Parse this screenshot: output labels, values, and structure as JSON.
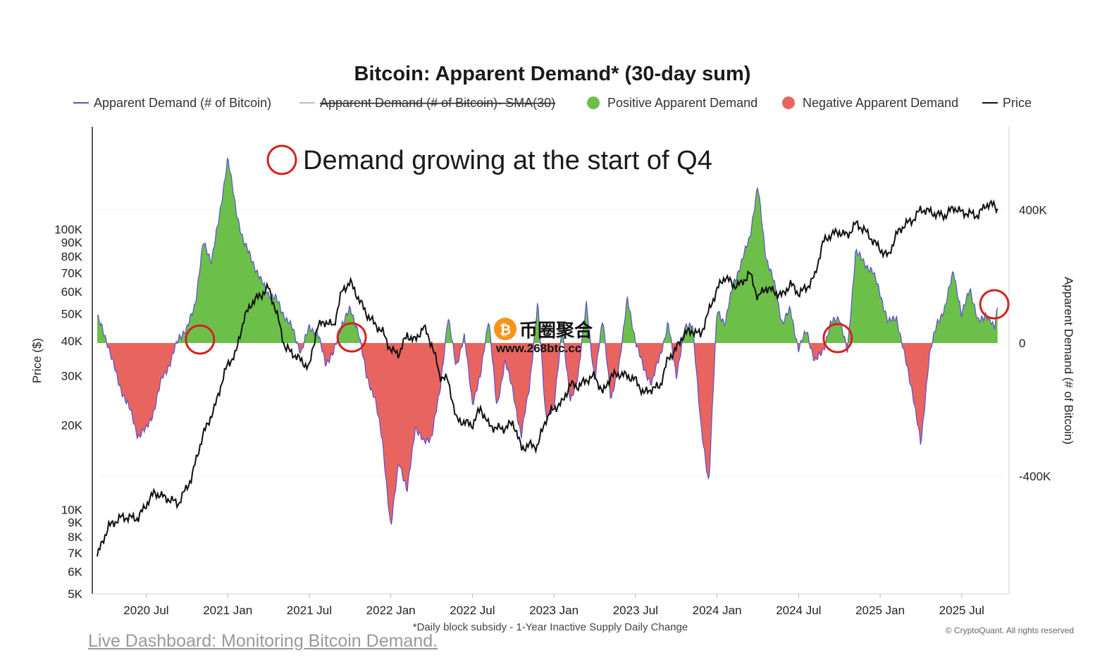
{
  "chart_data": {
    "type": "area",
    "title": "Bitcoin: Apparent Demand* (30-day sum)",
    "legend": [
      {
        "name": "Apparent Demand (# of Bitcoin)",
        "color": "#5a4fcf",
        "kind": "line",
        "hidden": false
      },
      {
        "name": "Apparent Demand (# of Bitcoin)- SMA(30)",
        "color": "#bbbbbb",
        "kind": "line",
        "hidden": true
      },
      {
        "name": "Positive Apparent Demand",
        "color": "#6cc04a",
        "kind": "dot",
        "hidden": false
      },
      {
        "name": "Negative Apparent Demand",
        "color": "#e8655f",
        "kind": "dot",
        "hidden": false
      },
      {
        "name": "Price",
        "color": "#111111",
        "kind": "line",
        "hidden": false
      }
    ],
    "x_ticks": [
      "2020 Jul",
      "2021 Jan",
      "2021 Jul",
      "2022 Jan",
      "2022 Jul",
      "2023 Jan",
      "2023 Jul",
      "2024 Jan",
      "2024 Jul",
      "2025 Jan",
      "2025 Jul"
    ],
    "x_range": [
      "2020-03-15",
      "2025-10-05"
    ],
    "left_axis": {
      "label": "Price ($)",
      "scale": "log",
      "range": [
        5000,
        200000
      ],
      "ticks": [
        {
          "v": 5000,
          "t": "5K"
        },
        {
          "v": 6000,
          "t": "6K"
        },
        {
          "v": 7000,
          "t": "7K"
        },
        {
          "v": 8000,
          "t": "8K"
        },
        {
          "v": 9000,
          "t": "9K"
        },
        {
          "v": 10000,
          "t": "10K"
        },
        {
          "v": 20000,
          "t": "20K"
        },
        {
          "v": 30000,
          "t": "30K"
        },
        {
          "v": 40000,
          "t": "40K"
        },
        {
          "v": 50000,
          "t": "50K"
        },
        {
          "v": 60000,
          "t": "60K"
        },
        {
          "v": 70000,
          "t": "70K"
        },
        {
          "v": 80000,
          "t": "80K"
        },
        {
          "v": 90000,
          "t": "90K"
        },
        {
          "v": 100000,
          "t": "100K"
        }
      ]
    },
    "right_axis": {
      "label": "Apparent Demand (# of Bitcoin)",
      "range": [
        -760000,
        650000
      ],
      "ticks": [
        {
          "v": 400000,
          "t": "400K"
        },
        {
          "v": 0,
          "t": "0"
        },
        {
          "v": -400000,
          "t": "-400K"
        }
      ]
    },
    "demand_series": {
      "name": "Apparent Demand (# of Bitcoin)",
      "x": [
        2020.2,
        2020.27,
        2020.33,
        2020.4,
        2020.45,
        2020.5,
        2020.55,
        2020.6,
        2020.65,
        2020.7,
        2020.75,
        2020.8,
        2020.85,
        2020.9,
        2020.95,
        2021.0,
        2021.05,
        2021.1,
        2021.15,
        2021.2,
        2021.25,
        2021.3,
        2021.35,
        2021.4,
        2021.45,
        2021.5,
        2021.55,
        2021.6,
        2021.65,
        2021.7,
        2021.75,
        2021.8,
        2021.85,
        2021.9,
        2021.95,
        2022.0,
        2022.05,
        2022.1,
        2022.15,
        2022.2,
        2022.25,
        2022.3,
        2022.35,
        2022.4,
        2022.45,
        2022.5,
        2022.55,
        2022.6,
        2022.65,
        2022.7,
        2022.75,
        2022.8,
        2022.85,
        2022.9,
        2022.95,
        2023.0,
        2023.05,
        2023.1,
        2023.15,
        2023.2,
        2023.25,
        2023.3,
        2023.35,
        2023.4,
        2023.45,
        2023.5,
        2023.55,
        2023.6,
        2023.65,
        2023.7,
        2023.75,
        2023.8,
        2023.85,
        2023.9,
        2023.95,
        2024.0,
        2024.05,
        2024.1,
        2024.15,
        2024.2,
        2024.25,
        2024.3,
        2024.35,
        2024.4,
        2024.45,
        2024.5,
        2024.55,
        2024.6,
        2024.65,
        2024.7,
        2024.75,
        2024.8,
        2024.85,
        2024.9,
        2024.95,
        2025.0,
        2025.05,
        2025.1,
        2025.15,
        2025.2,
        2025.25,
        2025.3,
        2025.35,
        2025.4,
        2025.45,
        2025.5,
        2025.55,
        2025.6,
        2025.65,
        2025.7,
        2025.72
      ],
      "y": [
        80000,
        -10000,
        -120000,
        -200000,
        -280000,
        -260000,
        -200000,
        -100000,
        -60000,
        20000,
        40000,
        120000,
        300000,
        250000,
        380000,
        560000,
        400000,
        300000,
        250000,
        190000,
        150000,
        130000,
        80000,
        40000,
        -30000,
        50000,
        30000,
        -60000,
        -30000,
        60000,
        100000,
        40000,
        -100000,
        -160000,
        -300000,
        -560000,
        -350000,
        -450000,
        -250000,
        -300000,
        -280000,
        -150000,
        80000,
        -70000,
        20000,
        -180000,
        -100000,
        80000,
        -200000,
        -50000,
        -150000,
        -280000,
        -130000,
        120000,
        -220000,
        -200000,
        50000,
        -180000,
        -90000,
        120000,
        -120000,
        80000,
        -180000,
        -60000,
        130000,
        10000,
        -80000,
        -120000,
        -40000,
        60000,
        -100000,
        40000,
        60000,
        -250000,
        -420000,
        100000,
        60000,
        180000,
        240000,
        320000,
        470000,
        260000,
        180000,
        60000,
        100000,
        -20000,
        40000,
        -60000,
        -20000,
        60000,
        80000,
        -30000,
        280000,
        240000,
        220000,
        150000,
        60000,
        80000,
        -40000,
        -150000,
        -310000,
        -40000,
        60000,
        110000,
        220000,
        80000,
        170000,
        60000,
        90000,
        40000,
        110000
      ]
    },
    "price_series": {
      "name": "Price",
      "x": [
        2020.2,
        2020.27,
        2020.35,
        2020.45,
        2020.55,
        2020.62,
        2020.7,
        2020.78,
        2020.85,
        2020.92,
        2021.0,
        2021.05,
        2021.1,
        2021.15,
        2021.2,
        2021.25,
        2021.3,
        2021.35,
        2021.4,
        2021.45,
        2021.5,
        2021.55,
        2021.6,
        2021.65,
        2021.7,
        2021.75,
        2021.8,
        2021.85,
        2021.9,
        2021.95,
        2022.0,
        2022.05,
        2022.1,
        2022.15,
        2022.2,
        2022.25,
        2022.3,
        2022.35,
        2022.4,
        2022.45,
        2022.5,
        2022.55,
        2022.6,
        2022.65,
        2022.7,
        2022.75,
        2022.8,
        2022.85,
        2022.9,
        2022.95,
        2023.0,
        2023.05,
        2023.1,
        2023.15,
        2023.2,
        2023.25,
        2023.3,
        2023.35,
        2023.4,
        2023.45,
        2023.5,
        2023.55,
        2023.6,
        2023.65,
        2023.7,
        2023.75,
        2023.8,
        2023.85,
        2023.9,
        2023.95,
        2024.0,
        2024.05,
        2024.1,
        2024.15,
        2024.2,
        2024.25,
        2024.3,
        2024.35,
        2024.4,
        2024.45,
        2024.5,
        2024.55,
        2024.6,
        2024.65,
        2024.7,
        2024.75,
        2024.8,
        2024.85,
        2024.9,
        2024.95,
        2025.0,
        2025.05,
        2025.1,
        2025.15,
        2025.2,
        2025.25,
        2025.3,
        2025.35,
        2025.4,
        2025.45,
        2025.5,
        2025.55,
        2025.6,
        2025.65,
        2025.7,
        2025.72
      ],
      "y": [
        6800,
        8700,
        9400,
        9300,
        11500,
        11000,
        10500,
        13000,
        18500,
        23000,
        33000,
        36000,
        48000,
        55000,
        58000,
        62000,
        50000,
        38000,
        36000,
        34000,
        32000,
        45000,
        47000,
        45000,
        60000,
        65000,
        57000,
        50000,
        46000,
        43000,
        37000,
        36000,
        42000,
        40000,
        45000,
        39000,
        30000,
        29000,
        21000,
        20500,
        20000,
        23000,
        20000,
        19500,
        19500,
        20500,
        16500,
        17000,
        16800,
        21000,
        23000,
        24000,
        28000,
        27500,
        29000,
        30000,
        26000,
        30000,
        30500,
        30000,
        29000,
        26000,
        27000,
        27500,
        34500,
        37500,
        42500,
        43500,
        42000,
        51000,
        61000,
        68000,
        63000,
        64000,
        70000,
        57000,
        62000,
        60000,
        58000,
        64000,
        59000,
        62000,
        68000,
        90000,
        96000,
        98000,
        95000,
        105000,
        100000,
        92000,
        85000,
        80000,
        96000,
        104000,
        108000,
        118000,
        116000,
        113000,
        112000,
        120000,
        115000,
        114000,
        112000,
        123000,
        122000,
        118000
      ]
    },
    "annotations": [
      {
        "text": "Demand growing at the start of Q4"
      }
    ],
    "highlight_circles": [
      2020.83,
      2021.76,
      2024.74,
      2025.7
    ],
    "footnote": "*Daily block subsidy - 1-Year Inactive Supply Daily Change",
    "copyright": "© CryptoQuant. All rights reserved",
    "watermark": {
      "text": "币圈聚合",
      "url": "www.268btc.cc",
      "icon": "bitcoin-icon"
    },
    "link_text": "Live Dashboard: Monitoring Bitcoin Demand."
  }
}
